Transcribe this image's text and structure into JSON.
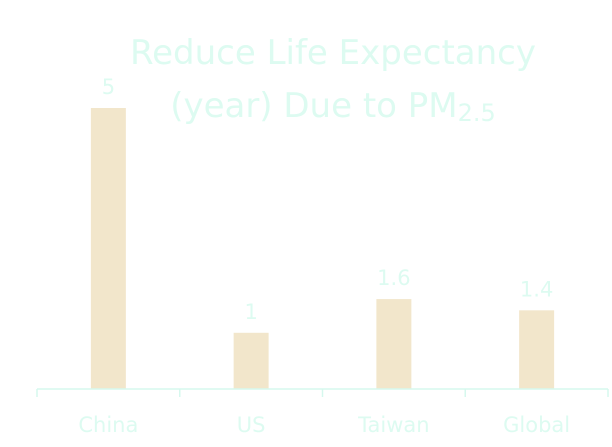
{
  "chart_data": {
    "type": "bar",
    "title_line1": "Reduce Life Expectancy",
    "title_line2": "(year) Due to PM",
    "title_subscript": "2.5",
    "categories": [
      "China",
      "US",
      "Taiwan",
      "Global"
    ],
    "values": [
      5,
      1,
      1.6,
      1.4
    ],
    "data_labels": [
      "5",
      "1",
      "1.6",
      "1.4"
    ],
    "xlabel": "",
    "ylabel": "",
    "ylim": [
      0,
      5
    ],
    "grid": false,
    "colors": {
      "bar": "#F2E6CB",
      "text": "#DDFBF1",
      "axis": "#D6F8EE"
    }
  }
}
